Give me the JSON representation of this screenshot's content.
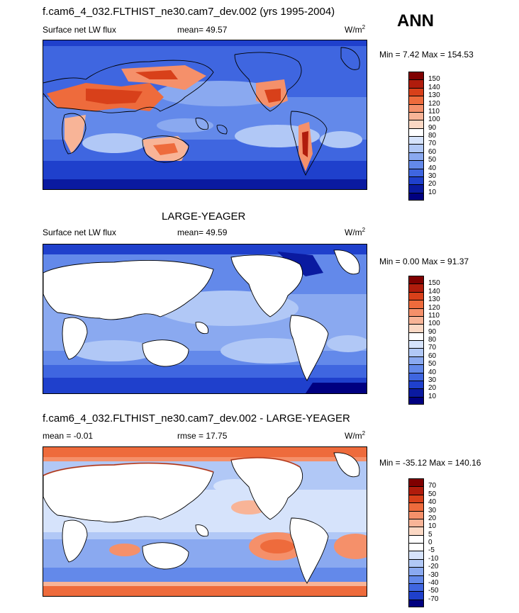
{
  "season": "ANN",
  "panels": [
    {
      "title": "f.cam6_4_032.FLTHIST_ne30.cam7_dev.002 (yrs 1995-2004)",
      "variable": "Surface net LW flux",
      "stat": "mean=  49.57",
      "units_base": "W/m",
      "units_exp": "2",
      "minmax": "Min =   7.42 Max = 154.53",
      "colorbar": {
        "labels": [
          "150",
          "140",
          "130",
          "120",
          "110",
          "100",
          "90",
          "80",
          "70",
          "60",
          "50",
          "40",
          "30",
          "20",
          "10"
        ],
        "colors": [
          "#7f0000",
          "#b01c0c",
          "#d8401a",
          "#ee6b3c",
          "#f5906a",
          "#f8b497",
          "#fbd8c4",
          "#ffffff",
          "#d6e3fb",
          "#b1c8f6",
          "#8aa9f0",
          "#6389ea",
          "#3f66e0",
          "#1f40cc",
          "#0a1aa0",
          "#000080"
        ]
      },
      "data_range": [
        7.42,
        154.53
      ],
      "mean": 49.57
    },
    {
      "title": "LARGE-YEAGER",
      "variable": "Surface net LW flux",
      "stat": "mean=  49.59",
      "units_base": "W/m",
      "units_exp": "2",
      "minmax": "Min =   0.00 Max =  91.37",
      "colorbar": {
        "labels": [
          "150",
          "140",
          "130",
          "120",
          "110",
          "100",
          "90",
          "80",
          "70",
          "60",
          "50",
          "40",
          "30",
          "20",
          "10"
        ],
        "colors": [
          "#7f0000",
          "#b01c0c",
          "#d8401a",
          "#ee6b3c",
          "#f5906a",
          "#f8b497",
          "#fbd8c4",
          "#ffffff",
          "#d6e3fb",
          "#b1c8f6",
          "#8aa9f0",
          "#6389ea",
          "#3f66e0",
          "#1f40cc",
          "#0a1aa0",
          "#000080"
        ]
      },
      "data_range": [
        0.0,
        91.37
      ],
      "mean": 49.59
    },
    {
      "title": "f.cam6_4_032.FLTHIST_ne30.cam7_dev.002 - LARGE-YEAGER",
      "variable": "mean =  -0.01",
      "stat": "rmse =  17.75",
      "units_base": "W/m",
      "units_exp": "2",
      "minmax": "Min = -35.12 Max = 140.16",
      "colorbar": {
        "labels": [
          "70",
          "50",
          "40",
          "30",
          "20",
          "10",
          "5",
          "0",
          "-5",
          "-10",
          "-20",
          "-30",
          "-40",
          "-50",
          "-70"
        ],
        "colors": [
          "#7f0000",
          "#b01c0c",
          "#d8401a",
          "#ee6b3c",
          "#f5906a",
          "#f8b497",
          "#fbd8c4",
          "#ffffff",
          "#ffffff",
          "#d6e3fb",
          "#b1c8f6",
          "#8aa9f0",
          "#6389ea",
          "#3f66e0",
          "#1f40cc",
          "#000080"
        ]
      },
      "data_range": [
        -35.12,
        140.16
      ],
      "mean": -0.01
    }
  ]
}
